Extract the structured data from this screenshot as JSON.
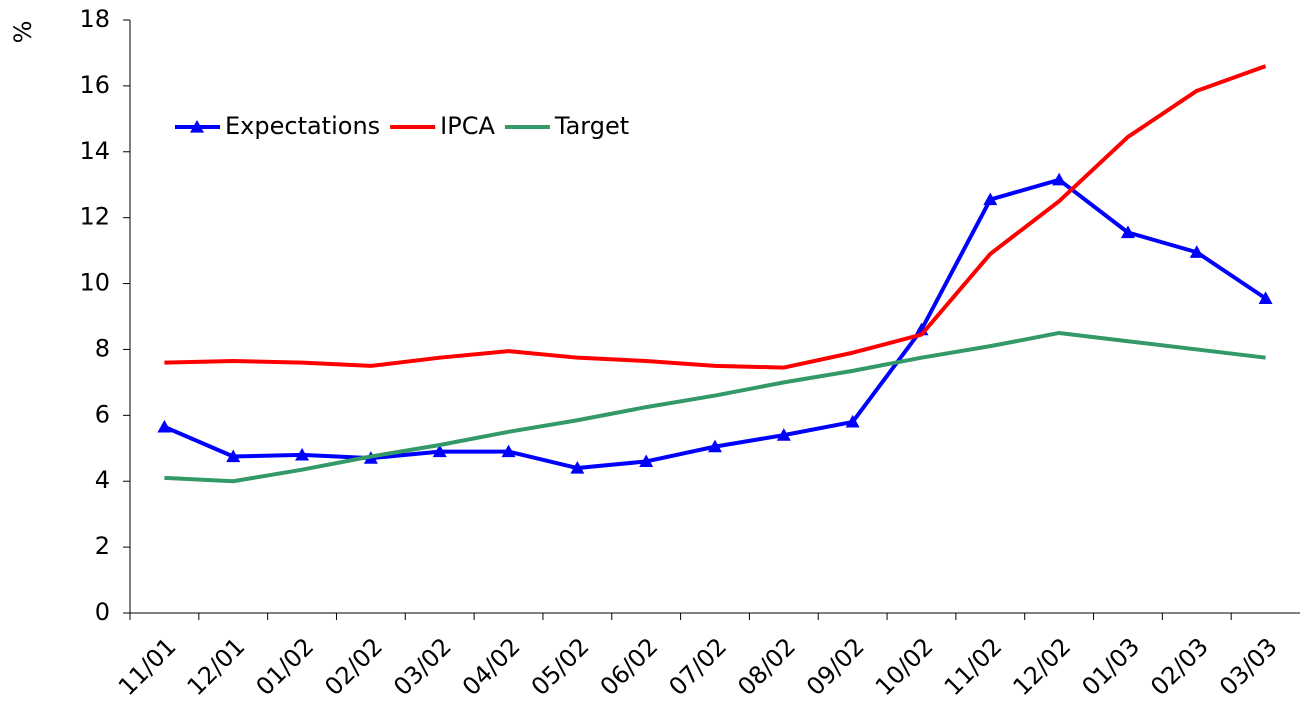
{
  "chart_data": {
    "type": "line",
    "y_label": "%",
    "categories": [
      "11/01",
      "12/01",
      "01/02",
      "02/02",
      "03/02",
      "04/02",
      "05/02",
      "06/02",
      "07/02",
      "08/02",
      "09/02",
      "10/02",
      "11/02",
      "12/02",
      "01/03",
      "02/03",
      "03/03"
    ],
    "series": [
      {
        "name": "Expectations",
        "color": "#0000ff",
        "marker": "triangle",
        "values": [
          5.65,
          4.75,
          4.8,
          4.7,
          4.9,
          4.9,
          4.4,
          4.6,
          5.05,
          5.4,
          5.8,
          8.6,
          12.55,
          13.15,
          11.55,
          10.95,
          9.55
        ]
      },
      {
        "name": "IPCA",
        "color": "#ff0000",
        "values": [
          7.6,
          7.65,
          7.6,
          7.5,
          7.75,
          7.95,
          7.75,
          7.65,
          7.5,
          7.45,
          7.9,
          8.45,
          10.9,
          12.5,
          14.45,
          15.85,
          16.6
        ]
      },
      {
        "name": "Target",
        "color": "#339966",
        "values": [
          4.1,
          4.0,
          4.35,
          4.75,
          5.1,
          5.5,
          5.85,
          6.25,
          6.6,
          7.0,
          7.35,
          7.75,
          8.1,
          8.5,
          8.25,
          8.0,
          7.75
        ]
      }
    ],
    "ylim": [
      0,
      18
    ],
    "yticks": [
      0,
      2,
      4,
      6,
      8,
      10,
      12,
      14,
      16,
      18
    ],
    "legend": "top-left"
  }
}
